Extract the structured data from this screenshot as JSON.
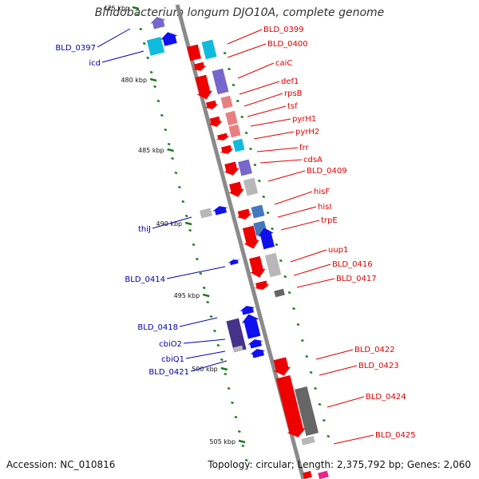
{
  "title": "Bifidobacterium longum DJO10A, complete genome",
  "footer": {
    "accession": "Accession: NC_010816",
    "summary": "Topology: circular; Length: 2,375,792 bp; Genes: 2,060"
  },
  "colors": {
    "backbone": "#8a8a8a",
    "tick": "#1e7a1e",
    "plus_label": "#dd0000",
    "minus_label": "#0000aa",
    "red": "#ee0000",
    "blue": "#1010ee",
    "cyan": "#11bbdd",
    "purple": "#7766cc",
    "pink": "#e88080",
    "grey": "#b8b8b8",
    "dark_grey": "#666666",
    "steel": "#4477bb",
    "indigo": "#443388"
  },
  "axis": {
    "tick_labels": [
      "475 kbp",
      "480 kbp",
      "485 kbp",
      "490 kbp",
      "495 kbp",
      "500 kbp",
      "505 kbp"
    ]
  },
  "genes_plus": [
    "BLD_0399",
    "BLD_0400",
    "caiC",
    "def1",
    "rpsB",
    "tsf",
    "pyrH1",
    "pyrH2",
    "frr",
    "cdsA",
    "BLD_0409",
    "hisF",
    "hisI",
    "trpE",
    "uup1",
    "BLD_0416",
    "BLD_0417",
    "BLD_0422",
    "BLD_0423",
    "BLD_0424",
    "BLD_0425"
  ],
  "genes_minus": [
    "BLD_0397",
    "icd",
    "thiJ",
    "BLD_0414",
    "BLD_0418",
    "cbiO2",
    "cbiQ1",
    "BLD_0421"
  ]
}
